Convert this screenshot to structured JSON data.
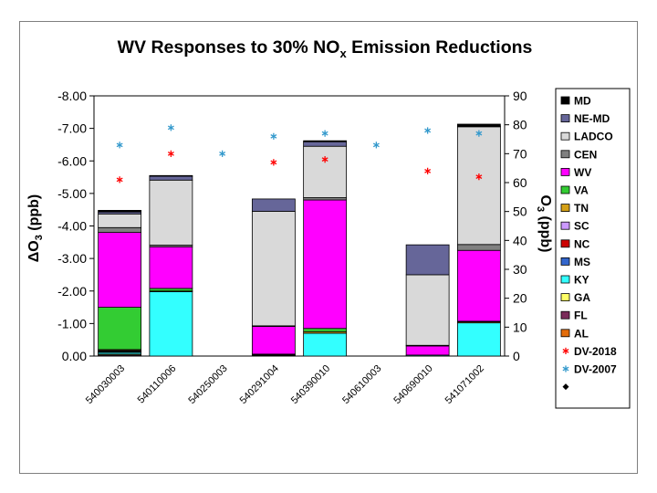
{
  "chart_data": {
    "type": "bar",
    "stacked": true,
    "title_main": "WV Responses to 30% NO",
    "title_sub": "x",
    "title_end": " Emission Reductions",
    "ylabel_left_delta": "ΔO",
    "ylabel_left_sub": "3",
    "ylabel_left_unit": " (ppb)",
    "ylabel_right_main": "O",
    "ylabel_right_sub": "3",
    "ylabel_right_unit": " (ppb)",
    "left_axis": {
      "min": 0,
      "max": -8,
      "reversed": true,
      "tick_labels": [
        "0.00",
        "-1.00",
        "-2.00",
        "-3.00",
        "-4.00",
        "-5.00",
        "-6.00",
        "-7.00",
        "-8.00"
      ]
    },
    "right_axis": {
      "min": 0,
      "max": 90,
      "tick_labels": [
        "0",
        "10",
        "20",
        "30",
        "40",
        "50",
        "60",
        "70",
        "80",
        "90"
      ]
    },
    "categories": [
      "540030003",
      "540110006",
      "540250003",
      "540291004",
      "540390010",
      "540610003",
      "540690010",
      "541071002"
    ],
    "series": [
      {
        "name": "AL",
        "color": "#e36c0a",
        "values": [
          0,
          0,
          0,
          0,
          0,
          0,
          0,
          0
        ]
      },
      {
        "name": "FL",
        "color": "#7b2c5a",
        "values": [
          -0.03,
          0,
          0,
          -0.02,
          0,
          0,
          0,
          0
        ]
      },
      {
        "name": "GA",
        "color": "#ffff66",
        "values": [
          -0.03,
          0,
          0,
          0,
          0,
          0,
          0,
          0
        ]
      },
      {
        "name": "KY",
        "color": "#33ffff",
        "values": [
          -0.05,
          -1.98,
          0,
          -0.02,
          -0.7,
          0,
          -0.03,
          -1.02
        ]
      },
      {
        "name": "MS",
        "color": "#3366cc",
        "values": [
          -0.02,
          0,
          0,
          0,
          0,
          0,
          0,
          0
        ]
      },
      {
        "name": "NC",
        "color": "#cc0000",
        "values": [
          -0.02,
          0,
          0,
          0,
          0,
          0,
          0,
          0
        ]
      },
      {
        "name": "SC",
        "color": "#cc99ff",
        "values": [
          -0.02,
          0,
          0,
          0,
          0,
          0,
          0,
          0
        ]
      },
      {
        "name": "TN",
        "color": "#d4a017",
        "values": [
          -0.03,
          -0.02,
          0,
          0,
          -0.05,
          0,
          0,
          -0.03
        ]
      },
      {
        "name": "VA",
        "color": "#33cc33",
        "values": [
          -1.3,
          -0.08,
          0,
          -0.02,
          -0.1,
          0,
          0,
          -0.02
        ]
      },
      {
        "name": "WV",
        "color": "#ff00ff",
        "values": [
          -2.3,
          -1.28,
          0,
          -0.85,
          -3.95,
          0,
          -0.28,
          -2.18
        ]
      },
      {
        "name": "CEN",
        "color": "#808080",
        "values": [
          -0.15,
          -0.05,
          0,
          -0.02,
          -0.07,
          0,
          -0.02,
          -0.18
        ]
      },
      {
        "name": "LADCO",
        "color": "#d9d9d9",
        "values": [
          -0.42,
          -2.0,
          0,
          -3.52,
          -1.58,
          0,
          -2.17,
          -3.62
        ]
      },
      {
        "name": "NE-MD",
        "color": "#666699",
        "values": [
          -0.06,
          -0.12,
          0,
          -0.38,
          -0.14,
          0,
          -0.92,
          -0.02
        ]
      },
      {
        "name": "MD",
        "color": "#000000",
        "values": [
          -0.05,
          -0.02,
          0,
          0,
          -0.03,
          0,
          0,
          -0.06
        ]
      }
    ],
    "scatter": [
      {
        "name": "DV-2018",
        "color": "#ff0000",
        "axis": "right",
        "values": [
          61,
          70,
          null,
          67,
          68,
          null,
          64,
          62
        ]
      },
      {
        "name": "DV-2007",
        "color": "#3399cc",
        "axis": "right",
        "values": [
          73,
          79,
          70,
          76,
          77,
          73,
          78,
          77
        ]
      }
    ],
    "legend": {
      "position": "right",
      "entries": [
        "MD",
        "NE-MD",
        "LADCO",
        "CEN",
        "WV",
        "VA",
        "TN",
        "SC",
        "NC",
        "MS",
        "KY",
        "GA",
        "FL",
        "AL",
        "DV-2018",
        "DV-2007",
        ""
      ]
    }
  }
}
